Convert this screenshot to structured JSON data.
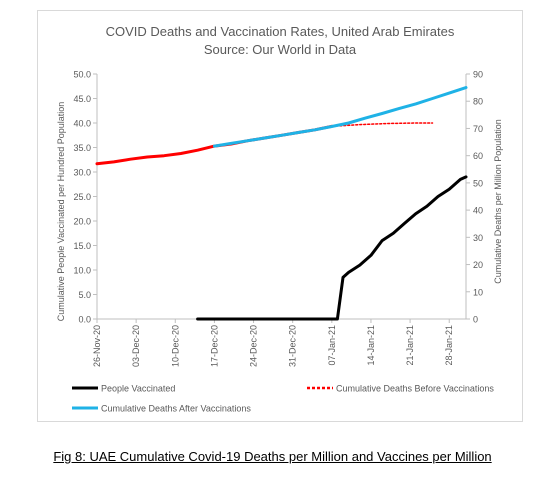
{
  "chart_data": {
    "type": "line",
    "title": "COVID Deaths and Vaccination Rates, United Arab Emirates",
    "subtitle": "Source: Our World in Data",
    "ylabel_left": "Cumulative People Vaccinated per Hundred Population",
    "ylabel_right": "Cumulative Deaths per Million Population",
    "ylim_left": [
      0,
      50
    ],
    "ylim_right": [
      0,
      90
    ],
    "yticks_left": [
      "0.0",
      "5.0",
      "10.0",
      "15.0",
      "20.0",
      "25.0",
      "30.0",
      "35.0",
      "40.0",
      "45.0",
      "50.0"
    ],
    "yticks_right": [
      "0",
      "10",
      "20",
      "30",
      "40",
      "50",
      "60",
      "70",
      "80",
      "90"
    ],
    "xticks": [
      "26-Nov-20",
      "03-Dec-20",
      "10-Dec-20",
      "17-Dec-20",
      "24-Dec-20",
      "31-Dec-20",
      "07-Jan-21",
      "14-Jan-21",
      "21-Jan-21",
      "28-Jan-21"
    ],
    "x_start": "2020-11-26",
    "x_end": "2021-01-31",
    "legend_placement": "bottom",
    "series": [
      {
        "name": "People Vaccinated",
        "axis": "left",
        "color": "#000000",
        "x": [
          "2020-12-14",
          "2021-01-08",
          "2021-01-09",
          "2021-01-10",
          "2021-01-12",
          "2021-01-14",
          "2021-01-16",
          "2021-01-18",
          "2021-01-20",
          "2021-01-22",
          "2021-01-24",
          "2021-01-26",
          "2021-01-28",
          "2021-01-30",
          "2021-01-31"
        ],
        "y": [
          0,
          0,
          8.5,
          9.5,
          11.0,
          13.0,
          16.0,
          17.5,
          19.5,
          21.5,
          23.0,
          25.0,
          26.5,
          28.5,
          29.0
        ]
      },
      {
        "name": "Cumulative Deaths Before Vaccinations",
        "axis": "right",
        "color": "#ff0000",
        "x": [
          "2020-11-26",
          "2020-11-29",
          "2020-12-02",
          "2020-12-05",
          "2020-12-08",
          "2020-12-11",
          "2020-12-14",
          "2020-12-17",
          "2020-12-20",
          "2020-12-23",
          "2020-12-26",
          "2020-12-29",
          "2021-01-01",
          "2021-01-04",
          "2021-01-07"
        ],
        "y": [
          57.0,
          57.7,
          58.7,
          59.5,
          60.0,
          60.8,
          62.0,
          63.5,
          64.3,
          65.5,
          66.5,
          67.5,
          68.5,
          69.5,
          70.8
        ]
      },
      {
        "name": "Cumulative Deaths Before Vaccinations (trend)",
        "axis": "right",
        "color": "#ff0000",
        "dashed": true,
        "x": [
          "2021-01-07",
          "2021-01-12",
          "2021-01-17",
          "2021-01-22",
          "2021-01-25"
        ],
        "y": [
          70.8,
          71.4,
          71.8,
          72.0,
          72.0
        ]
      },
      {
        "name": "Cumulative Deaths After Vaccinations",
        "axis": "right",
        "color": "#1fb2e6",
        "x": [
          "2020-12-17",
          "2020-12-20",
          "2020-12-23",
          "2020-12-26",
          "2020-12-29",
          "2021-01-01",
          "2021-01-04",
          "2021-01-07",
          "2021-01-10",
          "2021-01-13",
          "2021-01-16",
          "2021-01-19",
          "2021-01-22",
          "2021-01-25",
          "2021-01-28",
          "2021-01-31"
        ],
        "y": [
          63.5,
          64.5,
          65.5,
          66.5,
          67.5,
          68.5,
          69.5,
          70.7,
          72.0,
          73.8,
          75.5,
          77.3,
          79.0,
          81.0,
          83.0,
          85.0
        ]
      }
    ],
    "legend": [
      {
        "label": "People Vaccinated",
        "color": "#000000"
      },
      {
        "label": "Cumulative Deaths Before Vaccinations",
        "color": "#ff0000",
        "dashed": true
      },
      {
        "label": "Cumulative Deaths After Vaccinations",
        "color": "#1fb2e6"
      }
    ]
  },
  "caption": "Fig 8: UAE Cumulative Covid-19 Deaths per Million and Vaccines per Million"
}
